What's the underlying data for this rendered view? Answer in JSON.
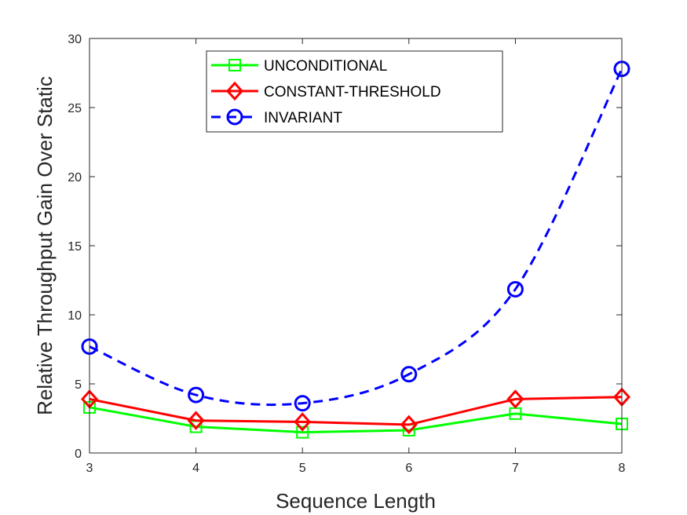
{
  "chart_data": {
    "type": "line",
    "xlabel": "Sequence Length",
    "ylabel": "Relative Throughput Gain Over Static",
    "xlim": [
      3,
      8
    ],
    "ylim": [
      0,
      30
    ],
    "x_ticks": [
      "3",
      "4",
      "5",
      "6",
      "7",
      "8"
    ],
    "y_ticks": [
      "0",
      "5",
      "10",
      "15",
      "20",
      "25",
      "30"
    ],
    "x": [
      3,
      4,
      5,
      6,
      7,
      8
    ],
    "grid": false,
    "legend_position": "top-center",
    "series": [
      {
        "name": "UNCONDITIONAL",
        "values": [
          3.3,
          1.9,
          1.5,
          1.65,
          2.85,
          2.1
        ],
        "color": "#00ff00",
        "marker": "square",
        "line_style": "solid"
      },
      {
        "name": "CONSTANT-THRESHOLD",
        "values": [
          3.9,
          2.35,
          2.25,
          2.05,
          3.9,
          4.05
        ],
        "color": "#ff0000",
        "marker": "diamond",
        "line_style": "solid"
      },
      {
        "name": "INVARIANT",
        "values": [
          7.7,
          4.2,
          3.6,
          5.7,
          11.85,
          27.8
        ],
        "color": "#0000ff",
        "marker": "circle",
        "line_style": "dashed"
      }
    ]
  }
}
